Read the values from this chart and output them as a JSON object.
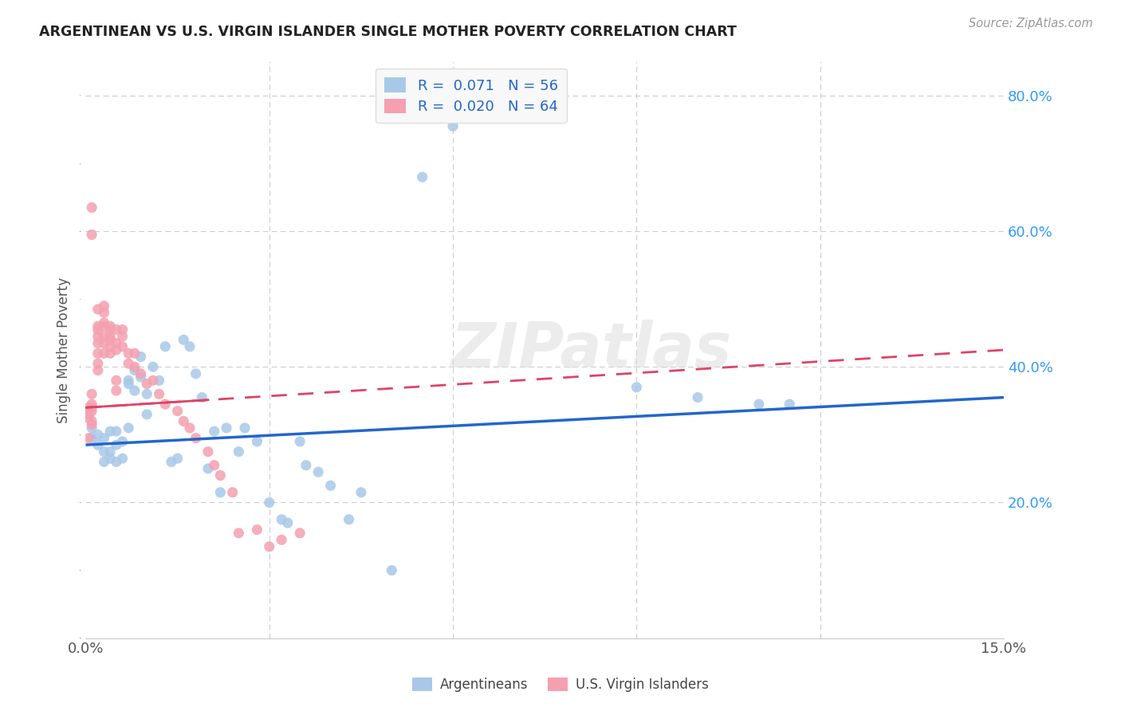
{
  "title": "ARGENTINEAN VS U.S. VIRGIN ISLANDER SINGLE MOTHER POVERTY CORRELATION CHART",
  "source": "Source: ZipAtlas.com",
  "ylabel": "Single Mother Poverty",
  "xlim": [
    0.0,
    0.15
  ],
  "ylim": [
    0.0,
    0.85
  ],
  "blue_color": "#a8c8e8",
  "pink_color": "#f4a0b0",
  "blue_line_color": "#2266cc",
  "pink_line_color": "#dd4466",
  "watermark": "ZIPatlas",
  "argentinean_x": [
    0.001,
    0.001,
    0.002,
    0.002,
    0.003,
    0.003,
    0.003,
    0.004,
    0.004,
    0.004,
    0.005,
    0.005,
    0.005,
    0.006,
    0.006,
    0.007,
    0.007,
    0.007,
    0.008,
    0.008,
    0.009,
    0.009,
    0.01,
    0.01,
    0.011,
    0.012,
    0.013,
    0.014,
    0.015,
    0.016,
    0.017,
    0.018,
    0.019,
    0.02,
    0.021,
    0.022,
    0.023,
    0.025,
    0.026,
    0.028,
    0.03,
    0.032,
    0.033,
    0.035,
    0.036,
    0.038,
    0.04,
    0.043,
    0.045,
    0.05,
    0.055,
    0.06,
    0.09,
    0.1,
    0.11,
    0.115
  ],
  "argentinean_y": [
    0.295,
    0.31,
    0.3,
    0.285,
    0.295,
    0.275,
    0.26,
    0.305,
    0.275,
    0.265,
    0.285,
    0.305,
    0.26,
    0.29,
    0.265,
    0.38,
    0.375,
    0.31,
    0.395,
    0.365,
    0.415,
    0.385,
    0.33,
    0.36,
    0.4,
    0.38,
    0.43,
    0.26,
    0.265,
    0.44,
    0.43,
    0.39,
    0.355,
    0.25,
    0.305,
    0.215,
    0.31,
    0.275,
    0.31,
    0.29,
    0.2,
    0.175,
    0.17,
    0.29,
    0.255,
    0.245,
    0.225,
    0.175,
    0.215,
    0.1,
    0.68,
    0.755,
    0.37,
    0.355,
    0.345,
    0.345
  ],
  "virgin_islander_x": [
    0.0005,
    0.0005,
    0.0005,
    0.0005,
    0.0005,
    0.001,
    0.001,
    0.001,
    0.001,
    0.001,
    0.001,
    0.001,
    0.001,
    0.002,
    0.002,
    0.002,
    0.002,
    0.002,
    0.002,
    0.002,
    0.002,
    0.003,
    0.003,
    0.003,
    0.003,
    0.003,
    0.003,
    0.003,
    0.004,
    0.004,
    0.004,
    0.004,
    0.004,
    0.004,
    0.005,
    0.005,
    0.005,
    0.005,
    0.005,
    0.006,
    0.006,
    0.006,
    0.007,
    0.007,
    0.008,
    0.008,
    0.009,
    0.01,
    0.011,
    0.012,
    0.013,
    0.015,
    0.016,
    0.017,
    0.018,
    0.02,
    0.021,
    0.022,
    0.024,
    0.025,
    0.028,
    0.03,
    0.032,
    0.035
  ],
  "virgin_islander_y": [
    0.34,
    0.335,
    0.33,
    0.325,
    0.295,
    0.635,
    0.595,
    0.36,
    0.345,
    0.34,
    0.335,
    0.32,
    0.315,
    0.485,
    0.46,
    0.455,
    0.445,
    0.435,
    0.42,
    0.405,
    0.395,
    0.49,
    0.48,
    0.465,
    0.46,
    0.445,
    0.435,
    0.42,
    0.46,
    0.455,
    0.445,
    0.44,
    0.43,
    0.42,
    0.455,
    0.435,
    0.425,
    0.38,
    0.365,
    0.455,
    0.445,
    0.43,
    0.42,
    0.405,
    0.42,
    0.4,
    0.39,
    0.375,
    0.38,
    0.36,
    0.345,
    0.335,
    0.32,
    0.31,
    0.295,
    0.275,
    0.255,
    0.24,
    0.215,
    0.155,
    0.16,
    0.135,
    0.145,
    0.155
  ]
}
